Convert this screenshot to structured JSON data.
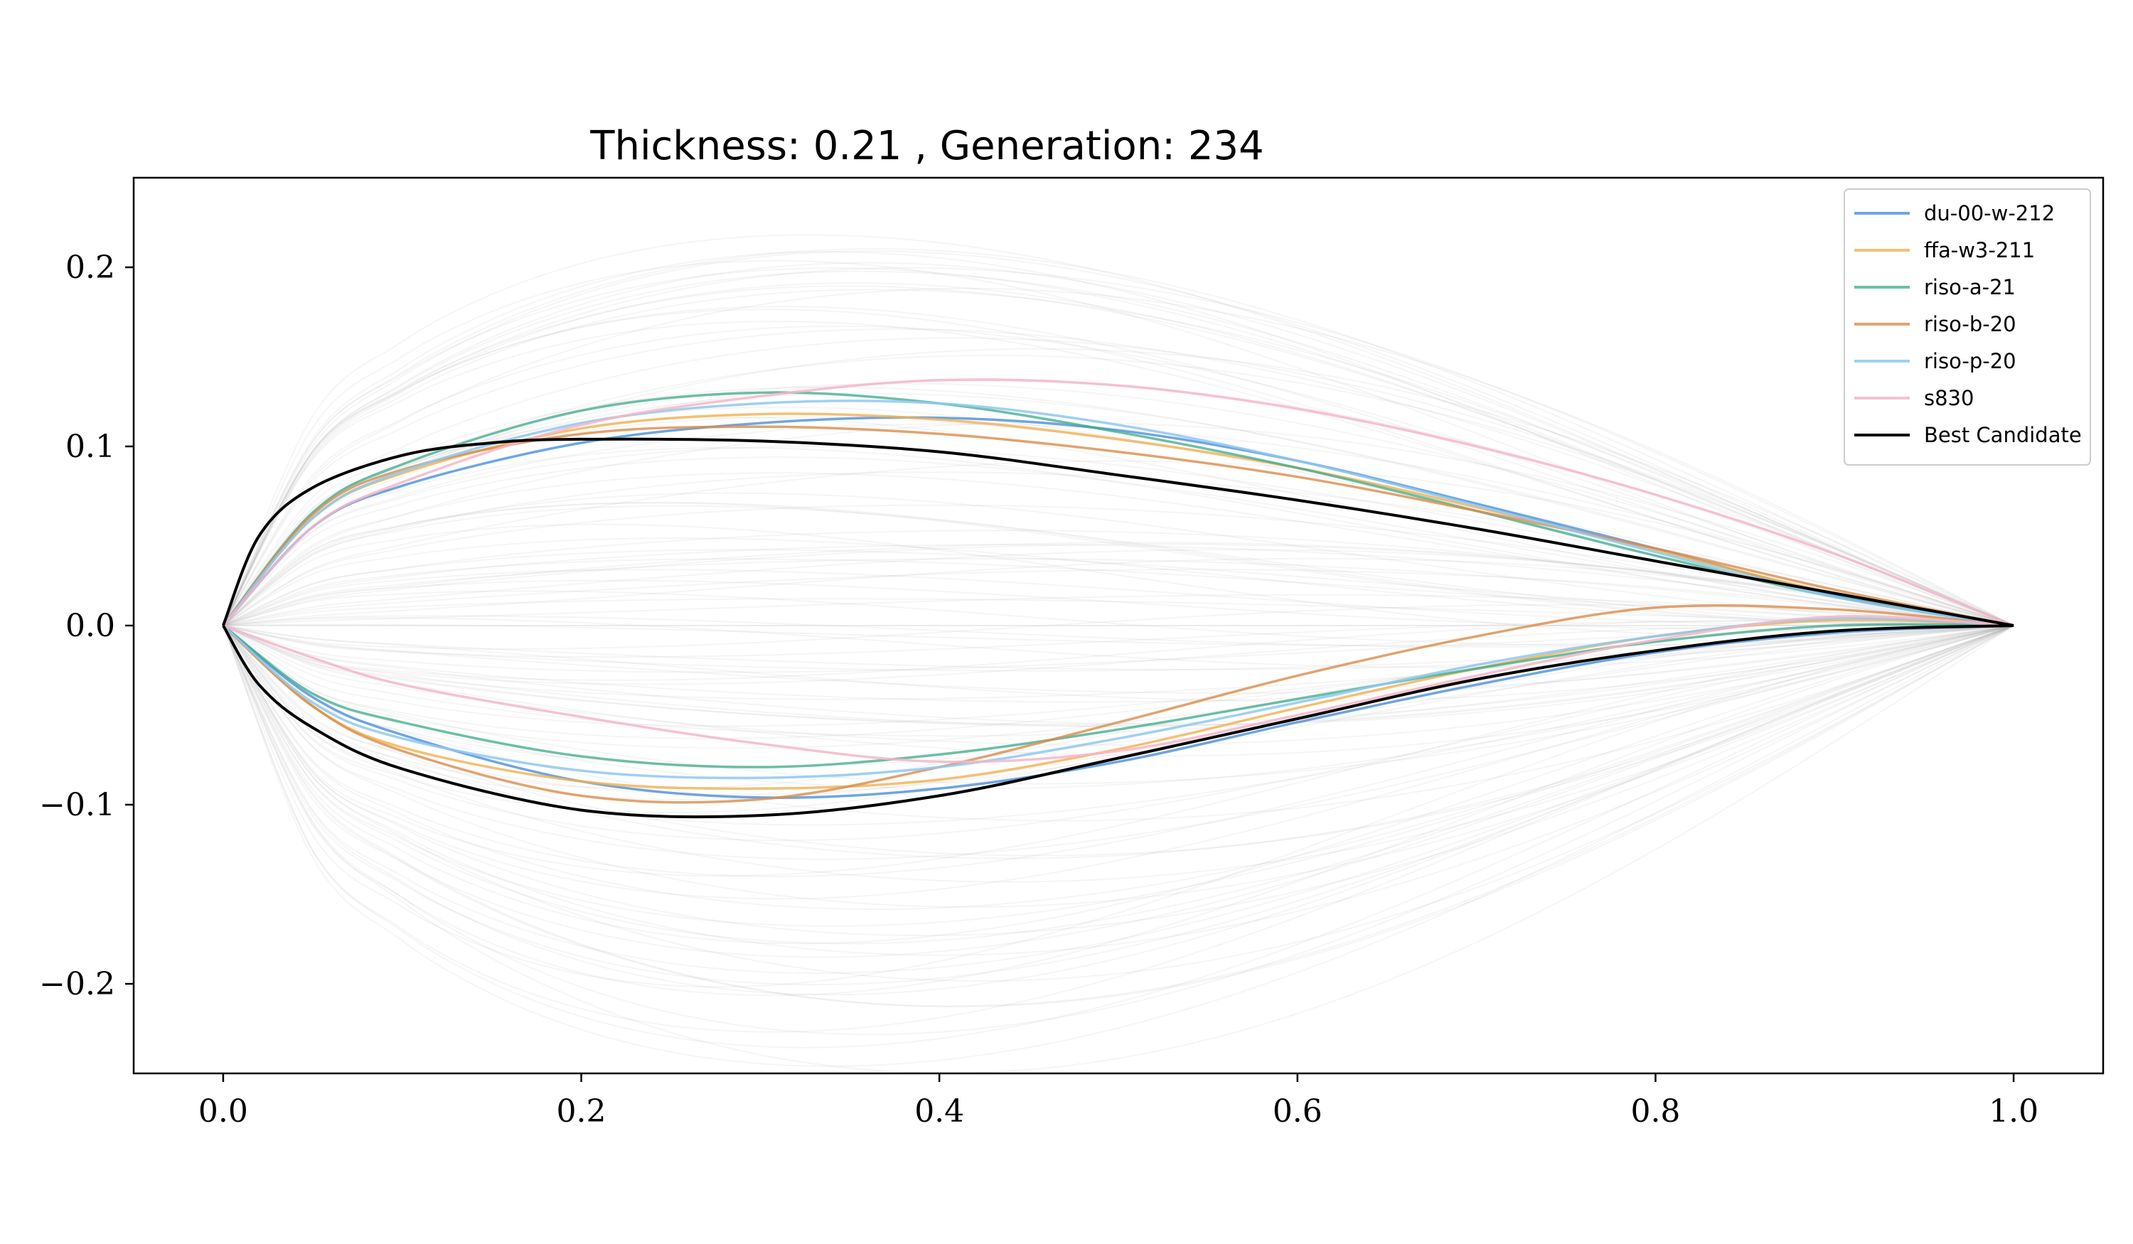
{
  "chart_data": {
    "type": "line",
    "title": "Thickness: 0.21 , Generation: 234",
    "xlabel": "",
    "ylabel": "",
    "xlim": [
      -0.05,
      1.05
    ],
    "ylim": [
      -0.25,
      0.25
    ],
    "xticks": [
      0.0,
      0.2,
      0.4,
      0.6,
      0.8,
      1.0
    ],
    "xtick_labels": [
      "0.0",
      "0.2",
      "0.4",
      "0.6",
      "0.8",
      "1.0"
    ],
    "yticks": [
      0.2,
      0.1,
      0.0,
      -0.1,
      -0.2
    ],
    "ytick_labels": [
      "0.2",
      "0.1",
      "0.0",
      "−0.1",
      "−0.2"
    ],
    "grid": false,
    "legend_position": "top-right",
    "background_population": {
      "count": 120,
      "color": "#b0b0b0",
      "opacity": 0.12,
      "description": "faint gray candidate airfoil population"
    },
    "series": [
      {
        "name": "du-00-w-212",
        "color": "#4a90d9",
        "opacity": 0.8,
        "upper": {
          "x": [
            0,
            0.05,
            0.1,
            0.2,
            0.3,
            0.4,
            0.5,
            0.6,
            0.7,
            0.8,
            0.9,
            1.0
          ],
          "y": [
            0,
            0.055,
            0.078,
            0.102,
            0.113,
            0.116,
            0.109,
            0.092,
            0.068,
            0.043,
            0.017,
            0
          ]
        },
        "lower": {
          "x": [
            0,
            0.05,
            0.1,
            0.2,
            0.3,
            0.4,
            0.5,
            0.6,
            0.7,
            0.8,
            0.9,
            1.0
          ],
          "y": [
            0,
            -0.04,
            -0.061,
            -0.087,
            -0.096,
            -0.091,
            -0.076,
            -0.054,
            -0.033,
            -0.015,
            -0.004,
            0
          ]
        }
      },
      {
        "name": "ffa-w3-211",
        "color": "#f0b050",
        "opacity": 0.8,
        "upper": {
          "x": [
            0,
            0.05,
            0.1,
            0.2,
            0.3,
            0.4,
            0.5,
            0.6,
            0.7,
            0.8,
            0.9,
            1.0
          ],
          "y": [
            0,
            0.06,
            0.085,
            0.11,
            0.118,
            0.115,
            0.104,
            0.088,
            0.066,
            0.042,
            0.018,
            0
          ]
        },
        "lower": {
          "x": [
            0,
            0.05,
            0.1,
            0.2,
            0.3,
            0.4,
            0.5,
            0.6,
            0.7,
            0.8,
            0.9,
            1.0
          ],
          "y": [
            0,
            -0.045,
            -0.068,
            -0.087,
            -0.091,
            -0.086,
            -0.069,
            -0.046,
            -0.024,
            -0.006,
            0.003,
            0
          ]
        }
      },
      {
        "name": "riso-a-21",
        "color": "#3aaa8a",
        "opacity": 0.75,
        "upper": {
          "x": [
            0,
            0.05,
            0.1,
            0.2,
            0.3,
            0.4,
            0.5,
            0.6,
            0.7,
            0.8,
            0.9,
            1.0
          ],
          "y": [
            0,
            0.063,
            0.09,
            0.12,
            0.13,
            0.124,
            0.108,
            0.088,
            0.064,
            0.039,
            0.016,
            0
          ]
        },
        "lower": {
          "x": [
            0,
            0.05,
            0.1,
            0.2,
            0.3,
            0.4,
            0.5,
            0.6,
            0.7,
            0.8,
            0.9,
            1.0
          ],
          "y": [
            0,
            -0.038,
            -0.054,
            -0.073,
            -0.079,
            -0.072,
            -0.058,
            -0.041,
            -0.024,
            -0.009,
            0.0,
            0
          ]
        }
      },
      {
        "name": "riso-b-20",
        "color": "#d98c4a",
        "opacity": 0.8,
        "upper": {
          "x": [
            0,
            0.05,
            0.1,
            0.2,
            0.3,
            0.4,
            0.5,
            0.6,
            0.7,
            0.8,
            0.9,
            1.0
          ],
          "y": [
            0,
            0.062,
            0.087,
            0.107,
            0.111,
            0.107,
            0.097,
            0.083,
            0.064,
            0.043,
            0.02,
            0
          ]
        },
        "lower": {
          "x": [
            0,
            0.05,
            0.1,
            0.2,
            0.3,
            0.4,
            0.5,
            0.6,
            0.7,
            0.8,
            0.9,
            1.0
          ],
          "y": [
            0,
            -0.045,
            -0.07,
            -0.095,
            -0.097,
            -0.079,
            -0.054,
            -0.028,
            -0.006,
            0.01,
            0.009,
            0
          ]
        }
      },
      {
        "name": "riso-p-20",
        "color": "#8ec8f0",
        "opacity": 0.85,
        "upper": {
          "x": [
            0,
            0.05,
            0.1,
            0.2,
            0.3,
            0.4,
            0.5,
            0.6,
            0.7,
            0.8,
            0.9,
            1.0
          ],
          "y": [
            0,
            0.06,
            0.086,
            0.113,
            0.124,
            0.124,
            0.112,
            0.092,
            0.067,
            0.041,
            0.016,
            0
          ]
        },
        "lower": {
          "x": [
            0,
            0.05,
            0.1,
            0.2,
            0.3,
            0.4,
            0.5,
            0.6,
            0.7,
            0.8,
            0.9,
            1.0
          ],
          "y": [
            0,
            -0.043,
            -0.063,
            -0.081,
            -0.085,
            -0.079,
            -0.063,
            -0.043,
            -0.022,
            -0.006,
            0.004,
            0
          ]
        }
      },
      {
        "name": "s830",
        "color": "#f4b6c8",
        "opacity": 0.85,
        "upper": {
          "x": [
            0,
            0.05,
            0.1,
            0.2,
            0.3,
            0.4,
            0.5,
            0.6,
            0.7,
            0.8,
            0.9,
            1.0
          ],
          "y": [
            0,
            0.055,
            0.08,
            0.112,
            0.128,
            0.137,
            0.134,
            0.121,
            0.1,
            0.073,
            0.04,
            0
          ]
        },
        "lower": {
          "x": [
            0,
            0.05,
            0.1,
            0.2,
            0.3,
            0.4,
            0.5,
            0.6,
            0.7,
            0.8,
            0.9,
            1.0
          ],
          "y": [
            0,
            -0.018,
            -0.033,
            -0.051,
            -0.066,
            -0.076,
            -0.07,
            -0.05,
            -0.028,
            -0.008,
            0.005,
            0
          ]
        }
      },
      {
        "name": "Best Candidate",
        "color": "#000000",
        "opacity": 1.0,
        "upper": {
          "x": [
            0,
            0.02,
            0.05,
            0.1,
            0.15,
            0.2,
            0.3,
            0.4,
            0.5,
            0.6,
            0.7,
            0.8,
            0.9,
            1.0
          ],
          "y": [
            0,
            0.05,
            0.077,
            0.095,
            0.102,
            0.104,
            0.103,
            0.097,
            0.084,
            0.07,
            0.054,
            0.036,
            0.018,
            0
          ]
        },
        "lower": {
          "x": [
            0,
            0.02,
            0.05,
            0.1,
            0.2,
            0.3,
            0.4,
            0.5,
            0.6,
            0.7,
            0.8,
            0.9,
            1.0
          ],
          "y": [
            0,
            -0.033,
            -0.057,
            -0.08,
            -0.103,
            -0.106,
            -0.095,
            -0.074,
            -0.052,
            -0.03,
            -0.014,
            -0.003,
            0
          ]
        }
      }
    ]
  }
}
